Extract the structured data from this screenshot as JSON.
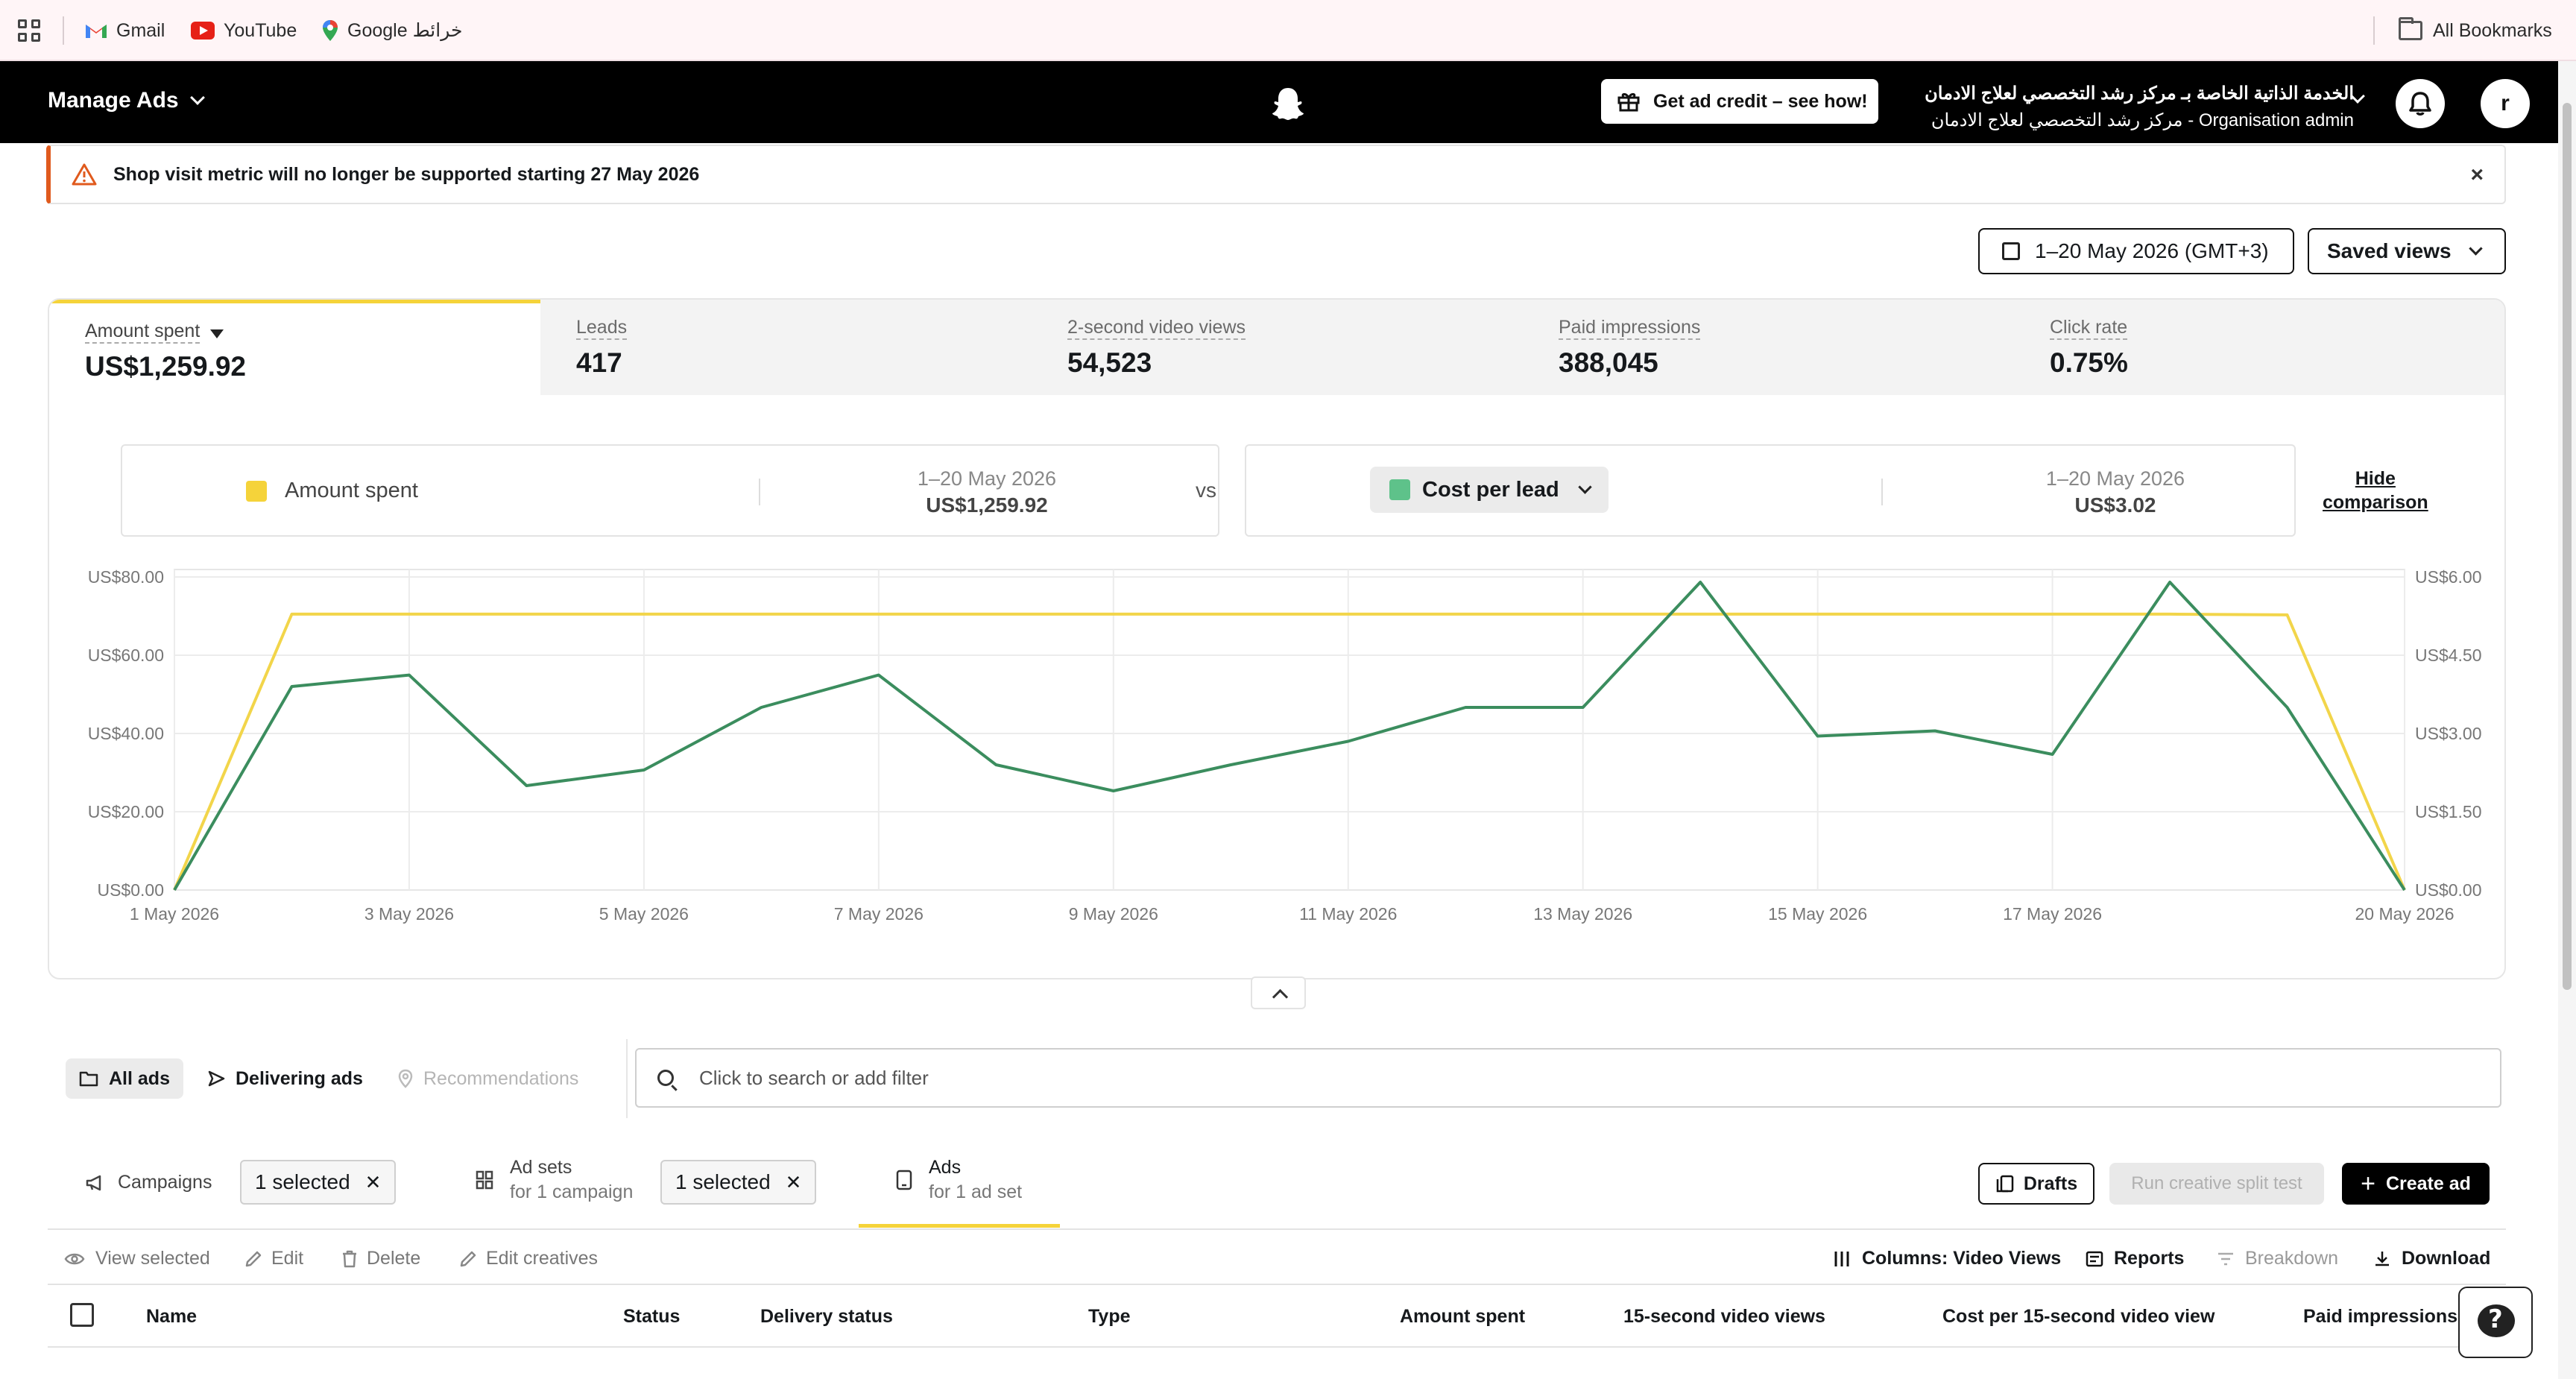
{
  "bookmarks": {
    "items": [
      {
        "label": "Gmail"
      },
      {
        "label": "YouTube"
      },
      {
        "label": "Google خرائط"
      }
    ],
    "all_bookmarks": "All Bookmarks"
  },
  "nav": {
    "title": "Manage Ads",
    "ad_credit": "Get ad credit – see how!",
    "org_line1": "الخدمة الذاتية الخاصة بـ مركز رشد التخصصي لعلاج الادمان",
    "org_line2": "مركز رشد التخصصي لعلاج الادمان - Organisation admin",
    "avatar_initial": "r"
  },
  "banner": {
    "message": "Shop visit metric will no longer be supported starting 27 May 2026",
    "close": "×"
  },
  "toolbar": {
    "date_range": "1–20 May 2026 (GMT+3)",
    "saved_views": "Saved views"
  },
  "metrics": [
    {
      "label": "Amount spent",
      "value": "US$1,259.92",
      "active": true
    },
    {
      "label": "Leads",
      "value": "417"
    },
    {
      "label": "2-second video views",
      "value": "54,523"
    },
    {
      "label": "Paid impressions",
      "value": "388,045"
    },
    {
      "label": "Click rate",
      "value": "0.75%"
    }
  ],
  "comparison": {
    "left": {
      "metric": "Amount spent",
      "period": "1–20 May 2026",
      "value": "US$1,259.92",
      "color": "#f5d33a"
    },
    "vs": "vs",
    "right": {
      "metric": "Cost per lead",
      "period": "1–20 May 2026",
      "value": "US$3.02",
      "color": "#5ec28a"
    },
    "hide_line1": "Hide",
    "hide_line2": "comparison"
  },
  "chart_data": {
    "type": "line",
    "x": [
      "1 May 2026",
      "2 May 2026",
      "3 May 2026",
      "4 May 2026",
      "5 May 2026",
      "6 May 2026",
      "7 May 2026",
      "8 May 2026",
      "9 May 2026",
      "10 May 2026",
      "11 May 2026",
      "12 May 2026",
      "13 May 2026",
      "14 May 2026",
      "15 May 2026",
      "16 May 2026",
      "17 May 2026",
      "18 May 2026",
      "19 May 2026",
      "20 May 2026"
    ],
    "x_tick_labels": [
      "1 May 2026",
      "3 May 2026",
      "5 May 2026",
      "7 May 2026",
      "9 May 2026",
      "11 May 2026",
      "13 May 2026",
      "15 May 2026",
      "17 May 2026",
      "20 May 2026"
    ],
    "y_left": {
      "ticks": [
        "US$0.00",
        "US$20.00",
        "US$40.00",
        "US$60.00",
        "US$80.00"
      ],
      "range": [
        0,
        80
      ]
    },
    "y_right": {
      "ticks": [
        "US$0.00",
        "US$1.50",
        "US$3.00",
        "US$4.50",
        "US$6.00"
      ],
      "range": [
        0,
        6
      ]
    },
    "series": [
      {
        "name": "Amount spent",
        "axis": "left",
        "color": "#f2d54a",
        "values": [
          0,
          70.5,
          70.5,
          70.5,
          70.5,
          70.5,
          70.5,
          70.5,
          70.5,
          70.5,
          70.5,
          70.5,
          70.5,
          70.5,
          70.5,
          70.5,
          70.5,
          70.5,
          70.3,
          0
        ]
      },
      {
        "name": "Cost per lead",
        "axis": "right",
        "color": "#3b8d5e",
        "values": [
          0,
          3.9,
          4.12,
          2.0,
          2.3,
          3.5,
          4.12,
          2.4,
          1.9,
          2.4,
          2.85,
          3.5,
          3.5,
          5.9,
          2.95,
          3.05,
          2.6,
          5.9,
          3.5,
          0
        ]
      }
    ],
    "grid": true
  },
  "filters": {
    "all_ads": "All ads",
    "delivering_ads": "Delivering ads",
    "recommendations": "Recommendations",
    "search_placeholder": "Click to search or add filter"
  },
  "levels": {
    "campaigns": "Campaigns",
    "campaigns_chip": "1 selected",
    "ad_sets": "Ad sets",
    "ad_sets_sub": "for 1 campaign",
    "ad_sets_chip": "1 selected",
    "ads": "Ads",
    "ads_sub": "for 1 ad set",
    "drafts": "Drafts",
    "split_test": "Run creative split test",
    "create_ad": "Create ad"
  },
  "actions": {
    "view_selected": "View selected",
    "edit": "Edit",
    "delete": "Delete",
    "edit_creatives": "Edit creatives",
    "columns": "Columns: Video Views",
    "reports": "Reports",
    "breakdown": "Breakdown",
    "download": "Download"
  },
  "table": {
    "headers": [
      "Name",
      "Status",
      "Delivery status",
      "Type",
      "Amount spent",
      "15-second video views",
      "Cost per 15-second video view",
      "Paid impressions"
    ]
  }
}
